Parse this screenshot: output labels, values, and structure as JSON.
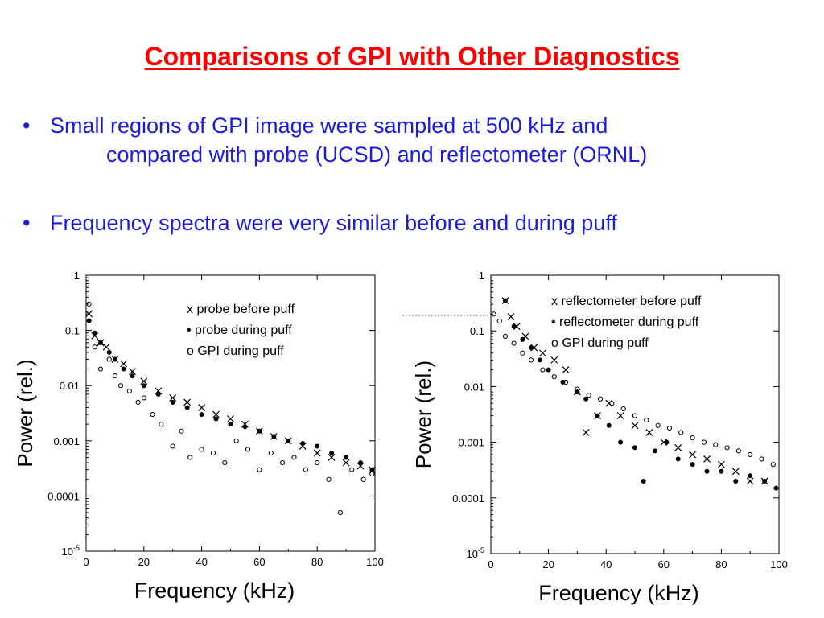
{
  "slide": {
    "title": "Comparisons of GPI with Other Diagnostics",
    "bullets": [
      {
        "line1": "Small regions of GPI image were sampled at 500 kHz and",
        "line2": "compared with probe (UCSD) and reflectometer (ORNL)"
      },
      {
        "line1": "Frequency spectra were very similar before and during puff"
      }
    ],
    "bullet_marker": "•"
  },
  "chart_data": [
    {
      "type": "scatter",
      "xlabel": "Frequency (kHz)",
      "ylabel": "Power (rel.)",
      "xlim": [
        0,
        100
      ],
      "ylim": [
        1e-05,
        1
      ],
      "yscale": "log",
      "xticks": [
        "0",
        "20",
        "40",
        "60",
        "80",
        "100"
      ],
      "yticks": [
        "1",
        "0.1",
        "0.01",
        "0.001",
        "0.0001",
        "10-5"
      ],
      "legend": [
        "x  probe before puff",
        "•   probe during puff",
        "o  GPI during puff"
      ],
      "legend_position": "top-right",
      "series": [
        {
          "name": "probe before puff",
          "marker": "x",
          "color": "#000000",
          "x": [
            1,
            3,
            5,
            7,
            10,
            13,
            16,
            20,
            25,
            30,
            35,
            40,
            45,
            50,
            55,
            60,
            65,
            70,
            75,
            80,
            85,
            90,
            95,
            99
          ],
          "y": [
            0.2,
            0.08,
            0.06,
            0.05,
            0.03,
            0.025,
            0.018,
            0.012,
            0.008,
            0.006,
            0.005,
            0.004,
            0.003,
            0.0025,
            0.002,
            0.0015,
            0.0012,
            0.001,
            0.0008,
            0.0006,
            0.0005,
            0.0004,
            0.00035,
            0.0003
          ]
        },
        {
          "name": "probe during puff",
          "marker": "dot",
          "color": "#000000",
          "x": [
            1,
            3,
            5,
            8,
            10,
            13,
            16,
            20,
            25,
            30,
            35,
            40,
            45,
            50,
            55,
            60,
            65,
            70,
            75,
            80,
            85,
            90,
            95,
            99
          ],
          "y": [
            0.15,
            0.09,
            0.06,
            0.04,
            0.03,
            0.02,
            0.015,
            0.01,
            0.007,
            0.005,
            0.004,
            0.003,
            0.0025,
            0.002,
            0.0018,
            0.0015,
            0.0012,
            0.001,
            0.0009,
            0.0008,
            0.0006,
            0.0005,
            0.0004,
            0.0003
          ]
        },
        {
          "name": "GPI during puff",
          "marker": "o",
          "color": "#000000",
          "x": [
            1,
            3,
            5,
            8,
            10,
            12,
            15,
            18,
            20,
            23,
            26,
            30,
            33,
            36,
            40,
            44,
            48,
            52,
            56,
            60,
            64,
            68,
            72,
            76,
            80,
            84,
            88,
            92,
            96,
            99
          ],
          "y": [
            0.3,
            0.05,
            0.02,
            0.03,
            0.015,
            0.01,
            0.008,
            0.005,
            0.006,
            0.003,
            0.002,
            0.0008,
            0.0015,
            0.0005,
            0.0007,
            0.0006,
            0.0004,
            0.001,
            0.0007,
            0.0003,
            0.0006,
            0.0004,
            0.0005,
            0.0003,
            0.0004,
            0.0002,
            5e-05,
            0.0003,
            0.0002,
            0.00025
          ]
        }
      ]
    },
    {
      "type": "scatter",
      "xlabel": "Frequency (kHz)",
      "ylabel": "Power (rel.)",
      "xlim": [
        0,
        100
      ],
      "ylim": [
        1e-05,
        1
      ],
      "yscale": "log",
      "xticks": [
        "0",
        "20",
        "40",
        "60",
        "80",
        "100"
      ],
      "yticks": [
        "1",
        "0.1",
        "0.01",
        "0.001",
        "0.0001",
        "10-5"
      ],
      "legend": [
        "x  reflectometer before puff",
        "•  reflectometer during puff",
        "o  GPI during puff"
      ],
      "legend_position": "top-right",
      "series": [
        {
          "name": "reflectometer before puff",
          "marker": "x",
          "color": "#000000",
          "x": [
            5,
            7,
            9,
            12,
            15,
            18,
            22,
            26,
            30,
            33,
            37,
            41,
            45,
            50,
            55,
            60,
            65,
            70,
            75,
            80,
            85,
            90,
            95
          ],
          "y": [
            0.35,
            0.18,
            0.12,
            0.08,
            0.05,
            0.04,
            0.03,
            0.02,
            0.008,
            0.0015,
            0.003,
            0.005,
            0.003,
            0.002,
            0.0015,
            0.001,
            0.0008,
            0.0006,
            0.0005,
            0.0004,
            0.0003,
            0.0002,
            0.0002
          ]
        },
        {
          "name": "reflectometer during puff",
          "marker": "dot",
          "color": "#000000",
          "x": [
            5,
            8,
            11,
            14,
            17,
            20,
            25,
            30,
            33,
            37,
            41,
            45,
            50,
            53,
            57,
            61,
            65,
            70,
            75,
            80,
            85,
            90,
            95,
            99
          ],
          "y": [
            0.35,
            0.12,
            0.07,
            0.05,
            0.03,
            0.02,
            0.012,
            0.008,
            0.006,
            0.003,
            0.002,
            0.001,
            0.0008,
            0.0002,
            0.0007,
            0.001,
            0.0005,
            0.0004,
            0.0003,
            0.0003,
            0.0002,
            0.00025,
            0.0002,
            0.00015
          ]
        },
        {
          "name": "GPI during puff",
          "marker": "o",
          "color": "#000000",
          "x": [
            1,
            3,
            5,
            8,
            11,
            14,
            18,
            22,
            26,
            30,
            34,
            38,
            42,
            46,
            50,
            54,
            58,
            62,
            66,
            70,
            74,
            78,
            82,
            86,
            90,
            94,
            98
          ],
          "y": [
            0.2,
            0.15,
            0.08,
            0.06,
            0.04,
            0.03,
            0.02,
            0.015,
            0.012,
            0.009,
            0.007,
            0.006,
            0.005,
            0.004,
            0.003,
            0.0025,
            0.002,
            0.0018,
            0.0015,
            0.0012,
            0.001,
            0.0009,
            0.0008,
            0.0007,
            0.0006,
            0.0005,
            0.0004
          ]
        }
      ]
    }
  ]
}
